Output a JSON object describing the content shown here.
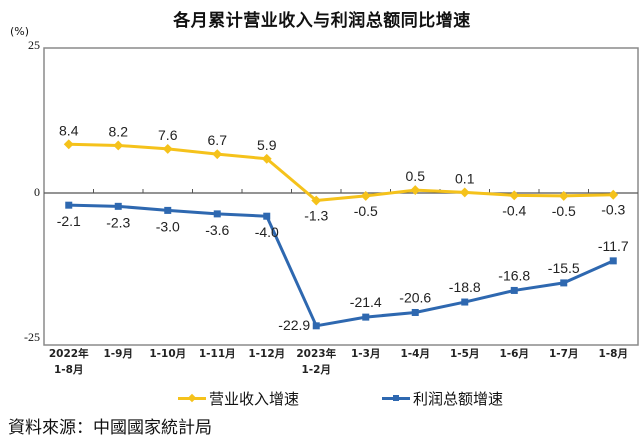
{
  "title": "各月累计营业收入与利润总额同比增速",
  "unit_label": "(%)",
  "source": "資料來源：中國國家統計局",
  "legend": [
    {
      "label": "营业收入增速",
      "color": "#f5c21b"
    },
    {
      "label": "利润总额增速",
      "color": "#2e68b0"
    }
  ],
  "y_ticks": [
    "25",
    "0",
    "-25"
  ],
  "x_labels": [
    [
      "2022年",
      "1-8月"
    ],
    [
      "1-9月",
      ""
    ],
    [
      "1-10月",
      ""
    ],
    [
      "1-11月",
      ""
    ],
    [
      "1-12月",
      ""
    ],
    [
      "2023年",
      "1-2月"
    ],
    [
      "1-3月",
      ""
    ],
    [
      "1-4月",
      ""
    ],
    [
      "1-5月",
      ""
    ],
    [
      "1-6月",
      ""
    ],
    [
      "1-7月",
      ""
    ],
    [
      "1-8月",
      ""
    ]
  ],
  "chart_data": {
    "type": "line",
    "title": "各月累计营业收入与利润总额同比增速",
    "xlabel": "",
    "ylabel": "(%)",
    "ylim": [
      -25,
      25
    ],
    "categories": [
      "2022年1-8月",
      "1-9月",
      "1-10月",
      "1-11月",
      "1-12月",
      "2023年1-2月",
      "1-3月",
      "1-4月",
      "1-5月",
      "1-6月",
      "1-7月",
      "1-8月"
    ],
    "series": [
      {
        "name": "营业收入增速",
        "color": "#f5c21b",
        "values": [
          8.4,
          8.2,
          7.6,
          6.7,
          5.9,
          -1.3,
          -0.5,
          0.5,
          0.1,
          -0.4,
          -0.5,
          -0.3
        ]
      },
      {
        "name": "利润总额增速",
        "color": "#2e68b0",
        "values": [
          -2.1,
          -2.3,
          -3.0,
          -3.6,
          -4.0,
          -22.9,
          -21.4,
          -20.6,
          -18.8,
          -16.8,
          -15.5,
          -11.7
        ]
      }
    ],
    "grid": false,
    "legend_position": "bottom",
    "source": "資料來源：中國國家統計局"
  }
}
